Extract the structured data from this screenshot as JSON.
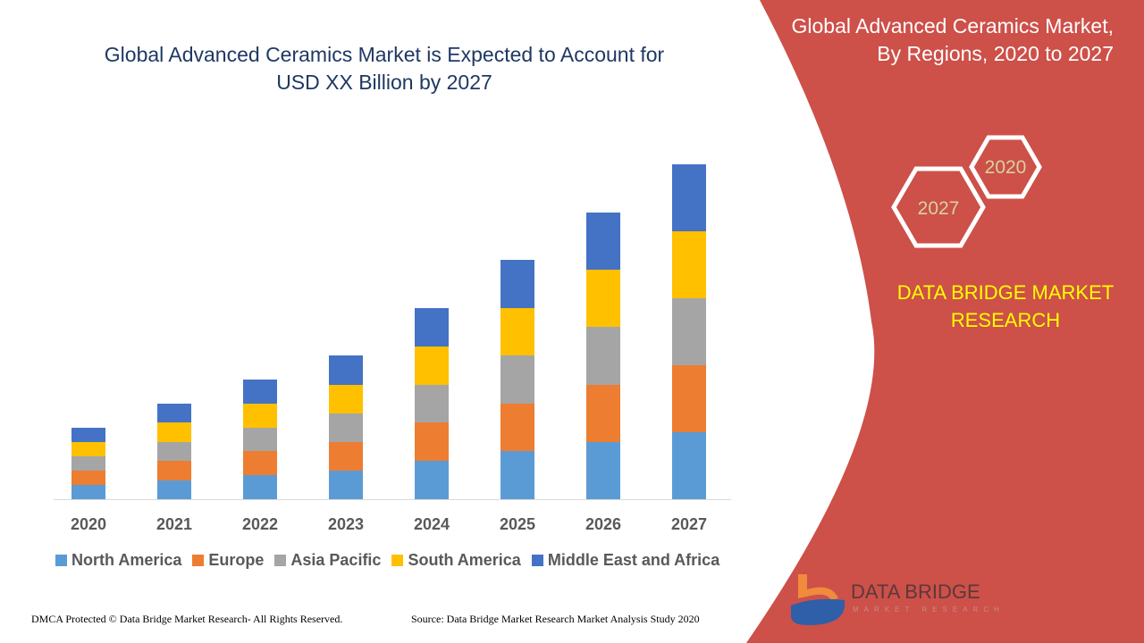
{
  "title": "Global Advanced Ceramics Market is Expected to Account for USD XX Billion by 2027",
  "title_lines": [
    "Global Advanced Ceramics Market is Expected to Account for",
    "USD XX Billion by 2027"
  ],
  "side_panel": {
    "title_lines": [
      "Global Advanced Ceramics Market,",
      "By Regions, 2020 to 2027"
    ],
    "hex_labels": [
      "2020",
      "2027"
    ],
    "brand_lines": [
      "DATA BRIDGE MARKET",
      "RESEARCH"
    ],
    "logo_text": "DATA BRIDGE",
    "logo_sub": "MARKET RESEARCH",
    "panel_color": "#cd5049",
    "brand_color": "#ffff00"
  },
  "footer": {
    "left": "DMCA Protected © Data Bridge Market Research- All Rights Reserved.",
    "right": "Source: Data Bridge Market Research Market Analysis Study 2020"
  },
  "chart_data": {
    "type": "bar",
    "stacked": true,
    "categories": [
      "2020",
      "2021",
      "2022",
      "2023",
      "2024",
      "2025",
      "2026",
      "2027"
    ],
    "series": [
      {
        "name": "North America",
        "color": "#5b9bd5",
        "values": [
          16,
          21,
          27,
          32,
          43,
          54,
          64,
          75
        ]
      },
      {
        "name": "Europe",
        "color": "#ed7d31",
        "values": [
          16,
          22,
          27,
          32,
          43,
          53,
          64,
          75
        ]
      },
      {
        "name": "Asia Pacific",
        "color": "#a5a5a5",
        "values": [
          16,
          21,
          26,
          32,
          42,
          54,
          65,
          75
        ]
      },
      {
        "name": "South America",
        "color": "#ffc000",
        "values": [
          16,
          22,
          27,
          32,
          43,
          53,
          64,
          75
        ]
      },
      {
        "name": "Middle East and Africa",
        "color": "#4472c4",
        "values": [
          16,
          21,
          27,
          33,
          43,
          54,
          64,
          75
        ]
      }
    ],
    "legend_position": "bottom",
    "grid": false,
    "yaxis_visible": false
  }
}
